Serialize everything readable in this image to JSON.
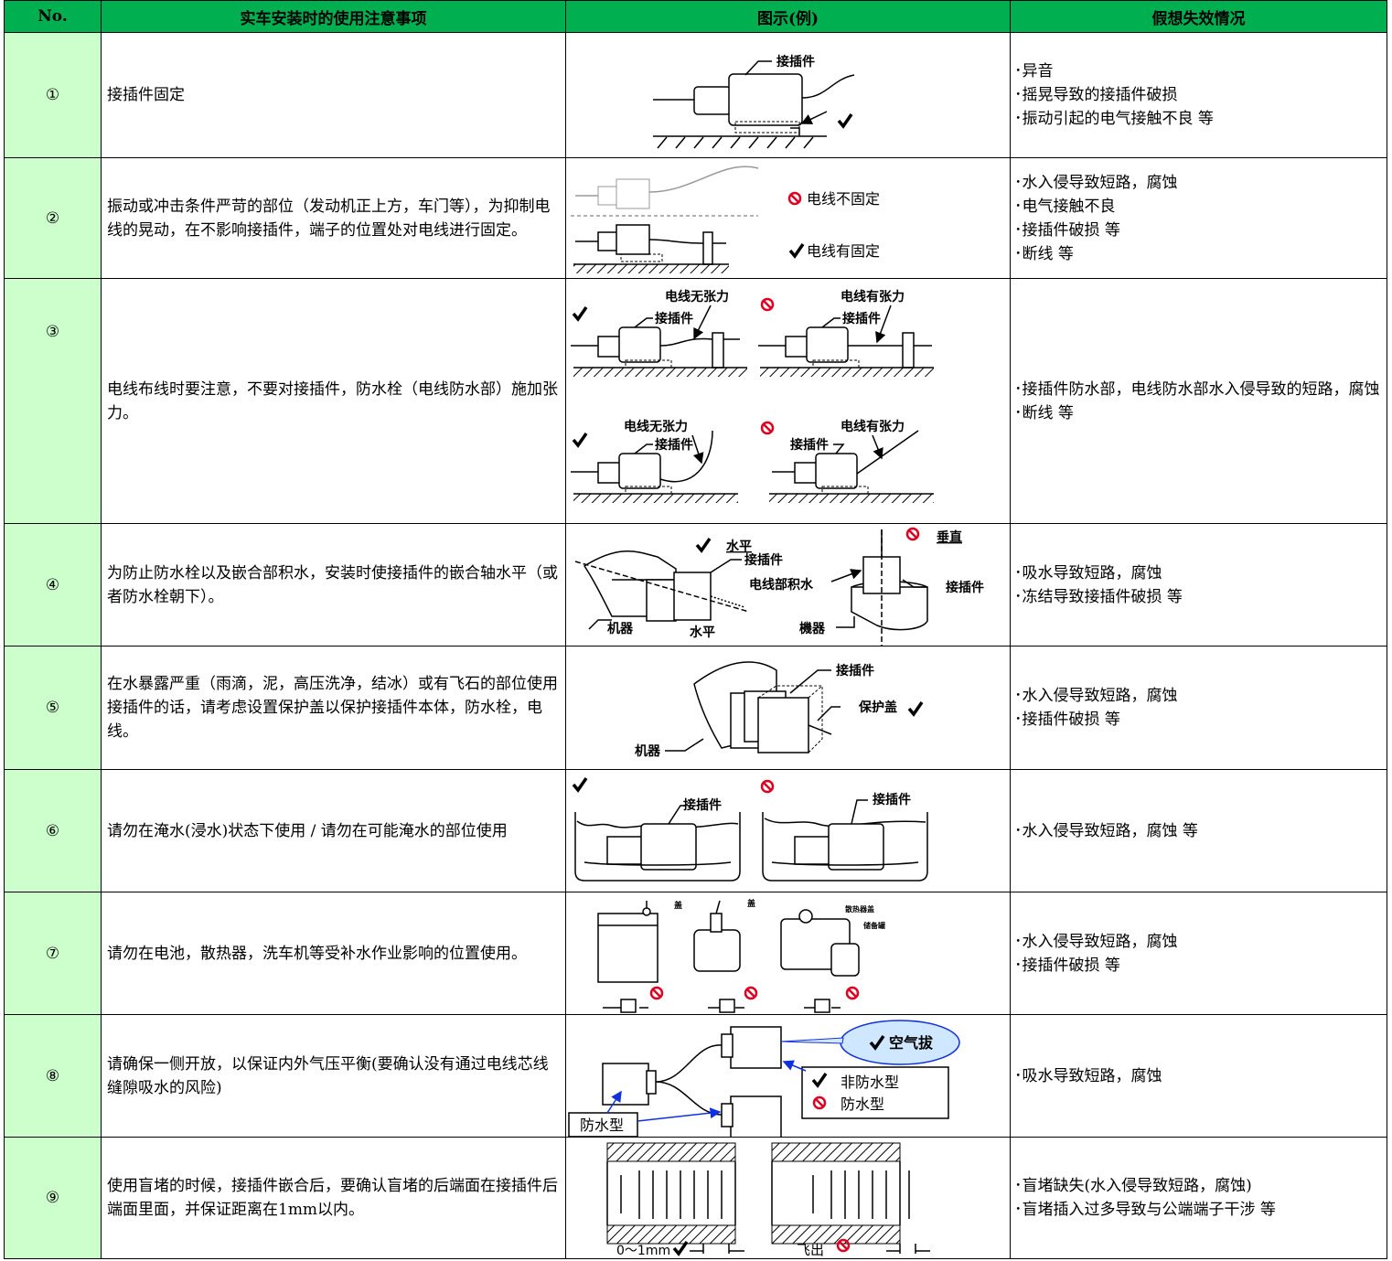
{
  "header": {
    "no": "No.",
    "precaution": "实车安装时的使用注意事项",
    "figure": "图示(例)",
    "failure": "假想失效情况"
  },
  "rows": [
    {
      "no": "①",
      "precaution": "接插件固定",
      "figure_labels": [
        "接插件"
      ],
      "failures": [
        "･异音",
        "･摇晃导致的接插件破损",
        "･振动引起的电气接触不良 等"
      ]
    },
    {
      "no": "②",
      "precaution": "振动或冲击条件严苛的部位（发动机正上方，车门等），为抑制电线的晃动，在不影响接插件，端子的位置处对电线进行固定。",
      "figure_labels": [
        "电线不固定",
        "电线有固定"
      ],
      "failures": [
        "･水入侵导致短路，腐蚀",
        "･电气接触不良",
        "･接插件破损 等",
        "･断线 等"
      ]
    },
    {
      "no": "③",
      "precaution": "电线布线时要注意，不要对接插件，防水栓（电线防水部）施加张力。",
      "figure_labels": [
        "电线无张力",
        "接插件",
        "电线有张力",
        "接插件",
        "电线无张力",
        "接插件",
        "电线有张力",
        "接插件"
      ],
      "failures": [
        "･接插件防水部，电线防水部水入侵导致的短路，腐蚀",
        "･断线 等"
      ]
    },
    {
      "no": "④",
      "precaution": "为防止防水栓以及嵌合部积水，安装时使接插件的嵌合轴水平（或者防水栓朝下）。",
      "figure_labels": [
        "水平",
        "接插件",
        "电线部积水",
        "机器",
        "水平",
        "垂直",
        "接插件",
        "機器"
      ],
      "failures": [
        "･吸水导致短路，腐蚀",
        "･冻结导致接插件破损 等"
      ]
    },
    {
      "no": "⑤",
      "precaution": "在水暴露严重（雨滴，泥，高压洗净，结冰）或有飞石的部位使用接插件的话，请考虑设置保护盖以保护接插件本体，防水栓，电线。",
      "figure_labels": [
        "接插件",
        "保护盖",
        "机器"
      ],
      "failures": [
        "･水入侵导致短路，腐蚀",
        "･接插件破损 等"
      ]
    },
    {
      "no": "⑥",
      "precaution": "请勿在淹水(浸水)状态下使用 / 请勿在可能淹水的部位使用",
      "figure_labels": [
        "接插件",
        "接插件"
      ],
      "failures": [
        "･水入侵导致短路，腐蚀 等"
      ]
    },
    {
      "no": "⑦",
      "precaution": "请勿在电池，散热器，洗车机等受补水作业影响的位置使用。",
      "figure_labels": [
        "盖",
        "盖",
        "散热器盖",
        "储备罐"
      ],
      "failures": [
        "･水入侵导致短路，腐蚀",
        "･接插件破损 等"
      ]
    },
    {
      "no": "⑧",
      "precaution": "请确保一侧开放，以保证内外气压平衡(要确认没有通过电线芯线缝隙吸水的风险)",
      "figure_labels": [
        "空气拔",
        "非防水型",
        "防水型",
        "防水型"
      ],
      "failures": [
        "･吸水导致短路，腐蚀"
      ]
    },
    {
      "no": "⑨",
      "precaution": "使用盲堵的时候，接插件嵌合后，要确认盲堵的后端面在接插件后端面里面，并保证距离在1mm以内。",
      "figure_labels": [
        "0～1mm",
        "飞出"
      ],
      "failures": [
        "･盲堵缺失(水入侵导致短路，腐蚀)",
        "･盲堵插入过多导致与公端端子干涉 等"
      ]
    }
  ]
}
